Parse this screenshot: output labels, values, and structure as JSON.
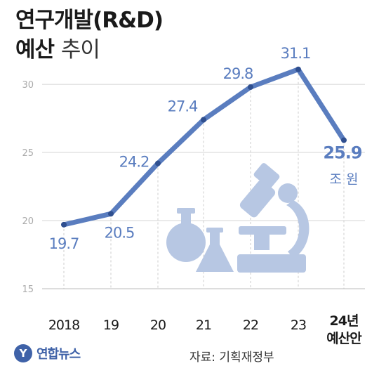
{
  "title": {
    "line1": "연구개발(R&D)",
    "line2_bold": "예산",
    "line2_light": "추이"
  },
  "chart_data": {
    "type": "line",
    "categories": [
      "2018",
      "19",
      "20",
      "21",
      "22",
      "23",
      "24년 예산안"
    ],
    "values": [
      19.7,
      20.5,
      24.2,
      27.4,
      29.8,
      31.1,
      25.9
    ],
    "value_labels": [
      "19.7",
      "20.5",
      "24.2",
      "27.4",
      "29.8",
      "31.1",
      "25.9"
    ],
    "last_unit": "조 원",
    "yticks": [
      15,
      20,
      25,
      30
    ],
    "ylim": [
      15,
      31.5
    ],
    "grid": true,
    "line_color": "#5a7dbf",
    "label_color": "#5a7dbf",
    "illustration_color": "#b7c7e3",
    "xlabel": "",
    "ylabel": ""
  },
  "footer": {
    "logo_mark": "Y",
    "logo_text": "연합뉴스",
    "source": "자료: 기획재정부"
  }
}
